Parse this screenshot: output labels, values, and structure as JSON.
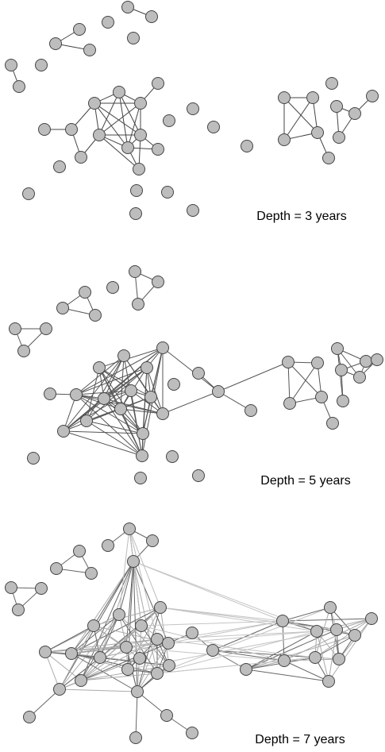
{
  "panels": [
    {
      "label": "Depth = 3 years"
    },
    {
      "label": "Depth = 5 years"
    },
    {
      "label": "Depth = 7 years"
    }
  ]
}
